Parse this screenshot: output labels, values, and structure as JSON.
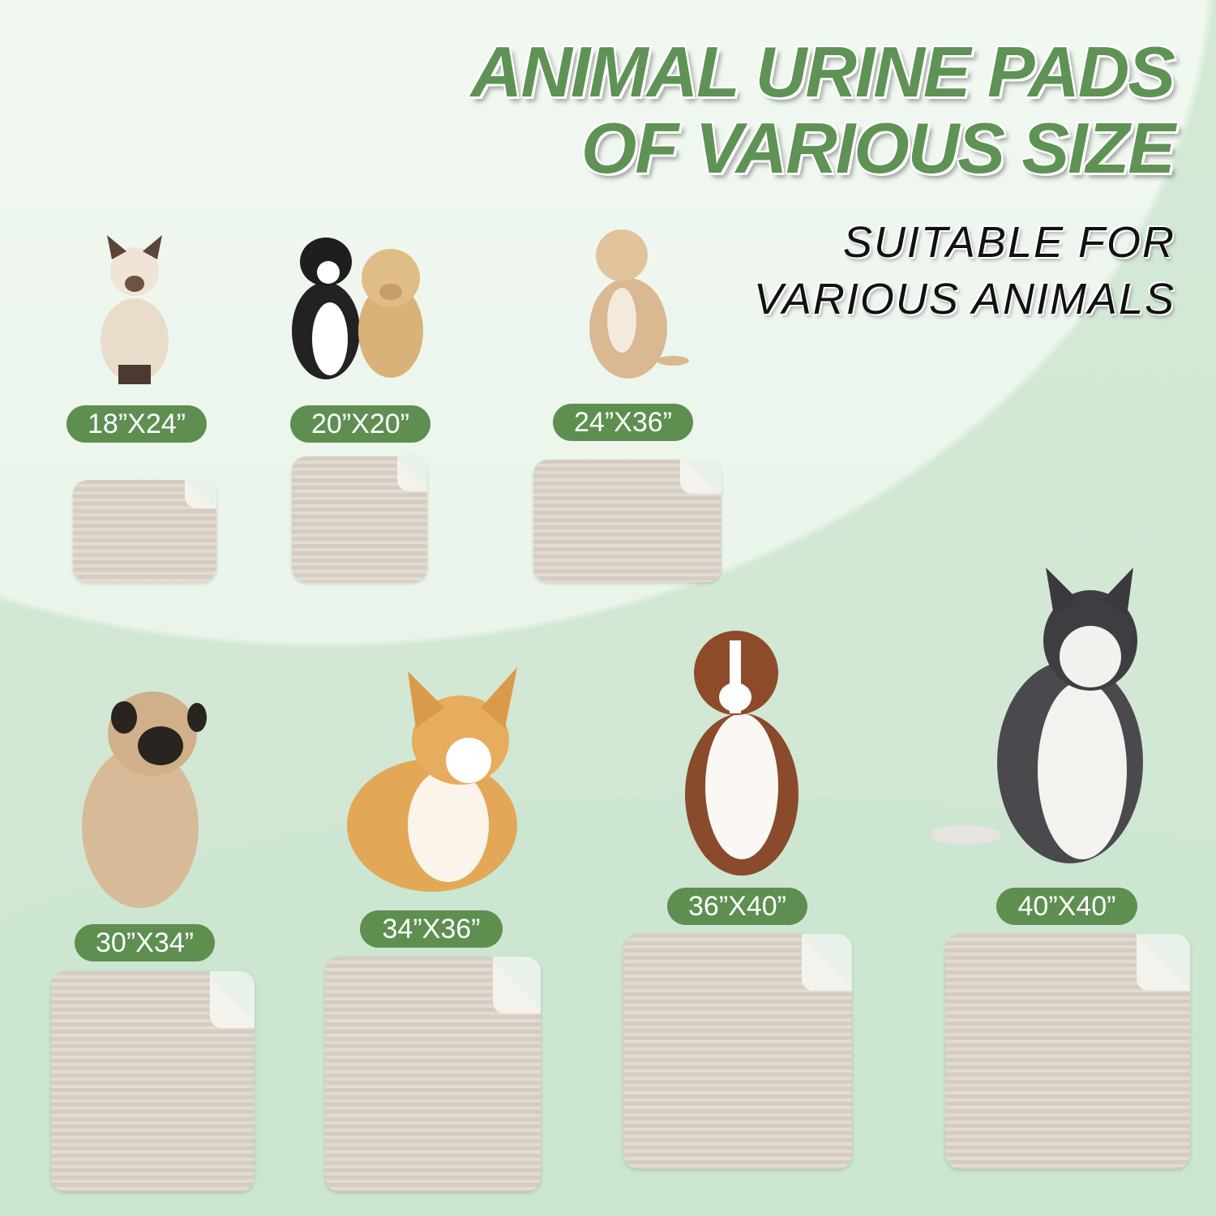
{
  "headline": {
    "line1": "ANIMAL URINE PADS",
    "line2": "OF VARIOUS SIZE"
  },
  "subheadline": {
    "line1": "SUITABLE FOR",
    "line2": "VARIOUS ANIMALS"
  },
  "colors": {
    "accent": "#5e8f51",
    "pad": "#d6cdc2",
    "background": "#d4e8d6"
  },
  "sizes": [
    {
      "label": "18”X24”",
      "animal": "siamese-cat"
    },
    {
      "label": "20”X20”",
      "animal": "cat-and-puppy"
    },
    {
      "label": "24”X36”",
      "animal": "medium-dog"
    },
    {
      "label": "30”X34”",
      "animal": "pug"
    },
    {
      "label": "34”X36”",
      "animal": "corgi"
    },
    {
      "label": "36”X40”",
      "animal": "australian-shepherd"
    },
    {
      "label": "40”X40”",
      "animal": "husky"
    }
  ]
}
